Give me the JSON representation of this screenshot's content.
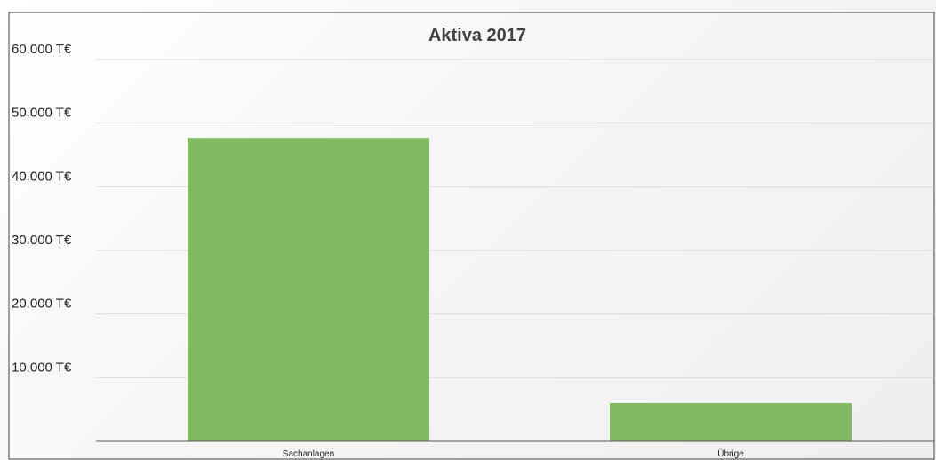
{
  "chart_data": {
    "type": "bar",
    "title": "Aktiva 2017",
    "categories": [
      "Sachanlagen",
      "Übrige"
    ],
    "values": [
      47700,
      6000
    ],
    "unit_suffix": " T€",
    "ylim": [
      0,
      60000
    ],
    "yticks": [
      "10.000 T€",
      "20.000 T€",
      "30.000 T€",
      "40.000 T€",
      "50.000 T€",
      "60.000 T€"
    ],
    "ytick_values": [
      10000,
      20000,
      30000,
      40000,
      50000,
      60000
    ],
    "grid": true,
    "legend": "none",
    "bar_color": "#83b964",
    "grid_color": "#d9d9d9",
    "axis_color": "#595959"
  }
}
